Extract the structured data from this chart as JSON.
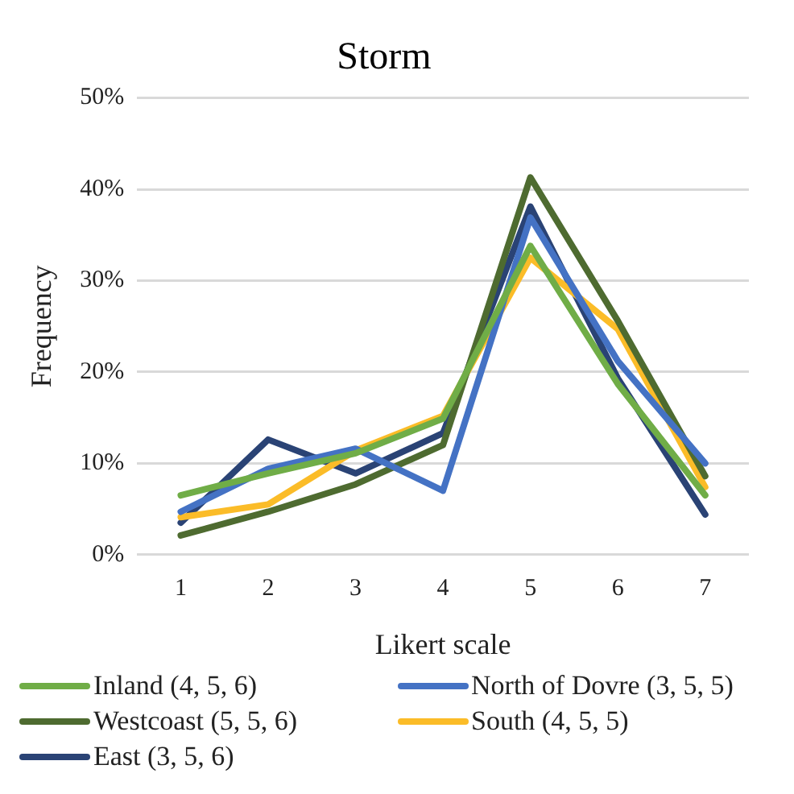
{
  "chart_data": {
    "type": "line",
    "title": "Storm",
    "xlabel": "Likert scale",
    "ylabel": "Frequency",
    "categories": [
      "1",
      "2",
      "3",
      "4",
      "5",
      "6",
      "7"
    ],
    "series": [
      {
        "name": "Inland (4, 5, 6)",
        "color": "#70ad47",
        "values": [
          6.5,
          8.9,
          11.1,
          14.9,
          33.8,
          18.7,
          6.5
        ]
      },
      {
        "name": "North of Dovre (3, 5, 5)",
        "color": "#4472c4",
        "values": [
          4.7,
          9.4,
          11.6,
          7.0,
          36.9,
          21.2,
          10.0
        ]
      },
      {
        "name": "Westcoast (5, 5, 6)",
        "color": "#4e6b30",
        "values": [
          2.1,
          4.7,
          7.7,
          12.0,
          41.3,
          25.6,
          8.6
        ]
      },
      {
        "name": "South (4, 5, 5)",
        "color": "#fbbc28",
        "values": [
          4.1,
          5.5,
          11.4,
          15.2,
          32.5,
          24.7,
          7.4
        ]
      },
      {
        "name": "East (3, 5, 6)",
        "color": "#2a4375",
        "values": [
          3.5,
          12.6,
          8.9,
          13.3,
          38.1,
          19.3,
          4.4
        ]
      }
    ],
    "ylim": [
      0,
      50
    ],
    "yticks": [
      {
        "value": 0,
        "label": "0%"
      },
      {
        "value": 10,
        "label": "10%"
      },
      {
        "value": 20,
        "label": "20%"
      },
      {
        "value": 30,
        "label": "30%"
      },
      {
        "value": 40,
        "label": "40%"
      },
      {
        "value": 50,
        "label": "50%"
      }
    ],
    "grid": "y",
    "legend": "bottom",
    "marker": "none",
    "line_style": "solid"
  }
}
